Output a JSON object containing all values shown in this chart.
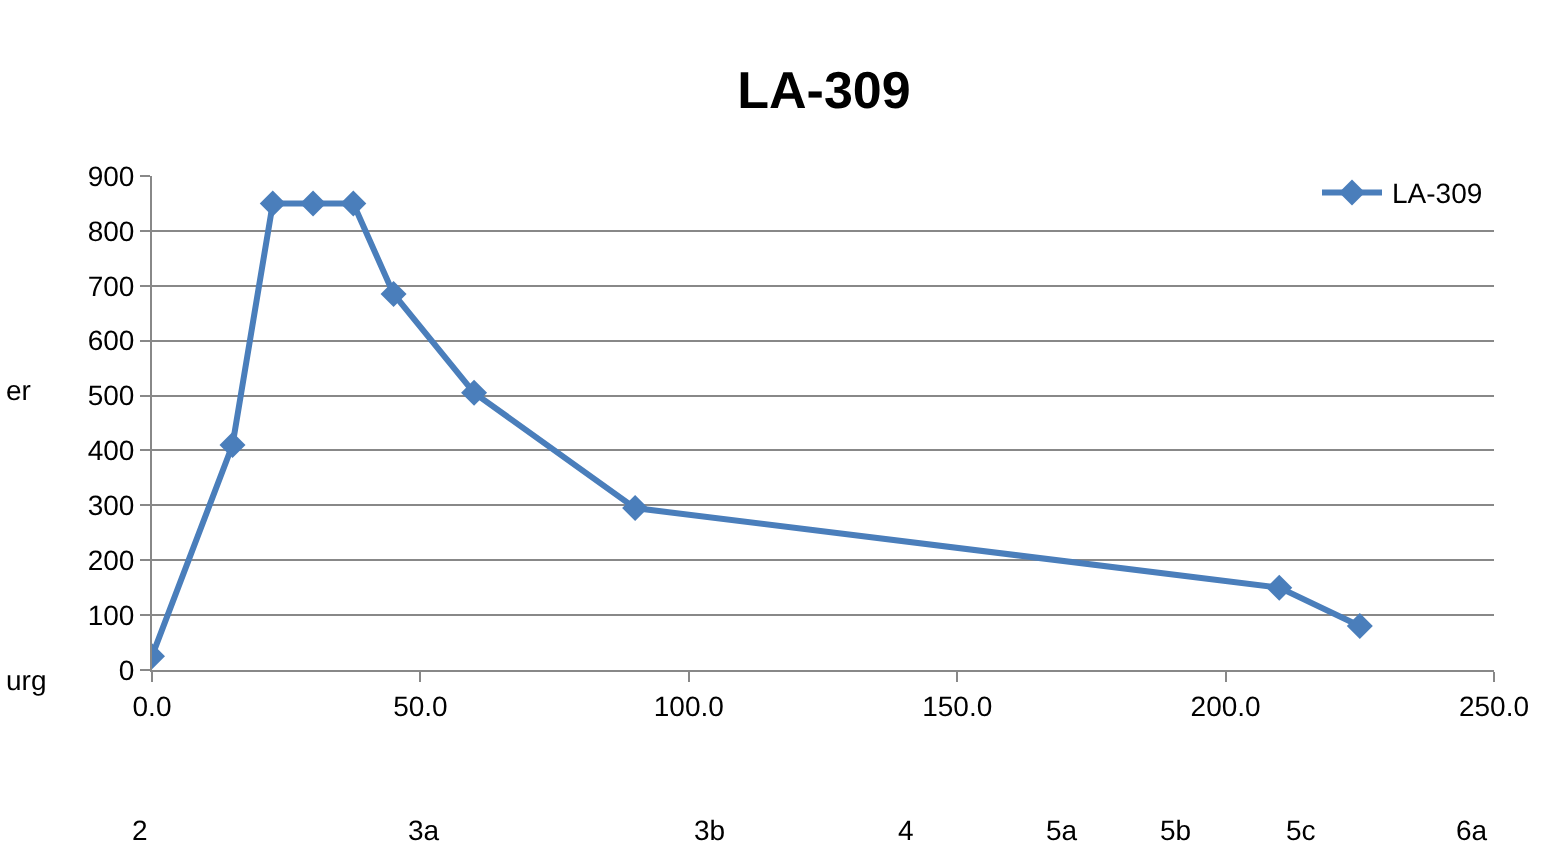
{
  "chart_data": {
    "type": "line",
    "title": "LA-309",
    "x": [
      0,
      15,
      22.5,
      30,
      37.5,
      45,
      60,
      90,
      210,
      225
    ],
    "series": [
      {
        "name": "LA-309",
        "color": "#4a7ebb",
        "values": [
          25,
          410,
          850,
          850,
          850,
          685,
          505,
          295,
          150,
          80
        ]
      }
    ],
    "xlim": [
      0,
      250
    ],
    "xticks": [
      {
        "value": 0,
        "label": "0.0"
      },
      {
        "value": 50,
        "label": "50.0"
      },
      {
        "value": 100,
        "label": "100.0"
      },
      {
        "value": 150,
        "label": "150.0"
      },
      {
        "value": 200,
        "label": "200.0"
      },
      {
        "value": 250,
        "label": "250.0"
      }
    ],
    "ylim": [
      0,
      900
    ],
    "yticks": [
      0,
      100,
      200,
      300,
      400,
      500,
      600,
      700,
      800,
      900
    ],
    "grid": "y",
    "legend": "top right",
    "marker": "diamond",
    "line_style": "solid",
    "annotations": [
      "er",
      "urg",
      "2",
      "3a",
      "3b",
      "4",
      "5a",
      "5b",
      "5c",
      "6a"
    ]
  }
}
